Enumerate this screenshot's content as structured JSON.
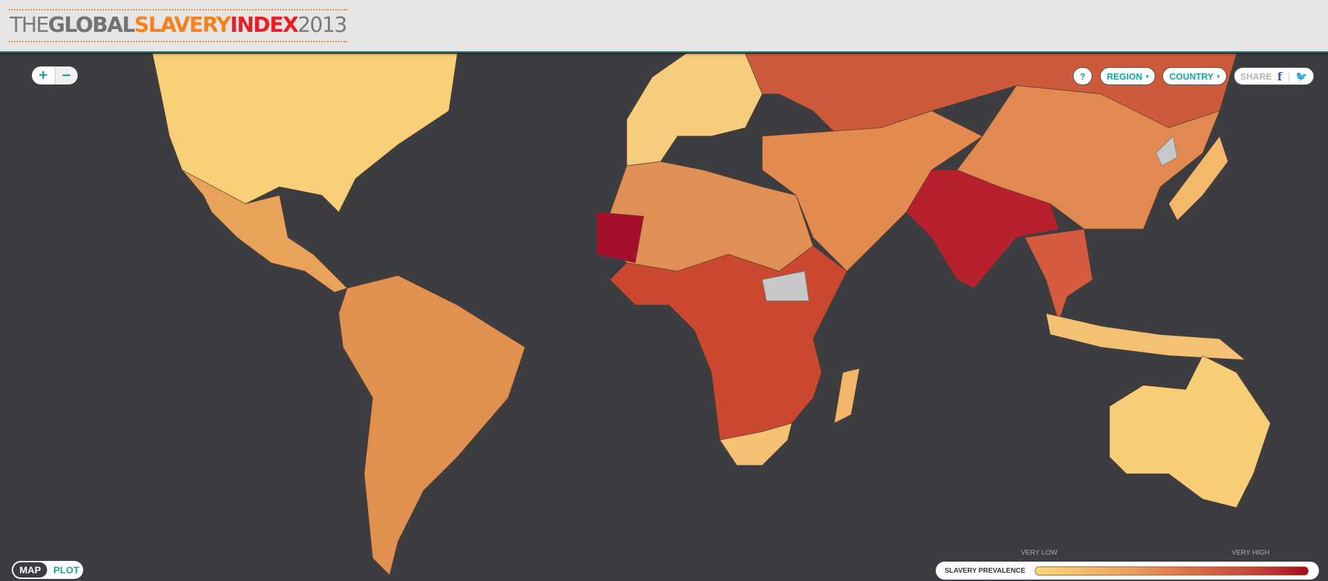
{
  "header": {
    "title_parts": {
      "the": "THE",
      "global": "GLOBAL",
      "slavery": "SLAVERY",
      "index": "INDEX",
      "year": "2013"
    }
  },
  "controls": {
    "zoom_in": "+",
    "zoom_out": "−",
    "help": "?",
    "region": "REGION",
    "country": "COUNTRY",
    "caret": "▾",
    "share": "SHARE",
    "facebook": "f",
    "twitter": "🐦",
    "share_separator": "|"
  },
  "view_toggle": {
    "map": "MAP",
    "plot": "PLOT",
    "active": "MAP"
  },
  "legend": {
    "label": "SLAVERY PREVALENCE",
    "low": "VERY LOW",
    "high": "VERY HIGH",
    "colors": [
      "#fbd77a",
      "#f0a862",
      "#d96a48",
      "#c13a3a",
      "#a8081f"
    ]
  },
  "map": {
    "ocean_color": "#3c3d41",
    "no_data_color": "#c8c8c8",
    "regions": [
      {
        "name": "north-america",
        "level": "very-low",
        "color": "#f8d078"
      },
      {
        "name": "mexico-central-america",
        "level": "low",
        "color": "#e9a25a"
      },
      {
        "name": "south-america",
        "level": "low-medium",
        "color": "#e0904f"
      },
      {
        "name": "europe",
        "level": "very-low",
        "color": "#f6cd7c"
      },
      {
        "name": "russia",
        "level": "high",
        "color": "#cc5a3b"
      },
      {
        "name": "middle-east-central-asia",
        "level": "medium",
        "color": "#e28a50"
      },
      {
        "name": "china",
        "level": "medium",
        "color": "#e08a52"
      },
      {
        "name": "south-asia",
        "level": "very-high",
        "color": "#b8202e"
      },
      {
        "name": "southeast-asia",
        "level": "high",
        "color": "#d45b3e"
      },
      {
        "name": "north-africa",
        "level": "medium",
        "color": "#e08f55"
      },
      {
        "name": "mauritania",
        "level": "very-high",
        "color": "#a50f2b"
      },
      {
        "name": "sub-saharan-africa",
        "level": "high",
        "color": "#c9482f"
      },
      {
        "name": "southern-africa",
        "level": "low",
        "color": "#f4c175"
      },
      {
        "name": "madagascar",
        "level": "low",
        "color": "#f0b66a"
      },
      {
        "name": "indonesia",
        "level": "low",
        "color": "#f2c174"
      },
      {
        "name": "japan",
        "level": "low",
        "color": "#f4b86c"
      },
      {
        "name": "australia",
        "level": "very-low",
        "color": "#f7cd77"
      }
    ]
  }
}
